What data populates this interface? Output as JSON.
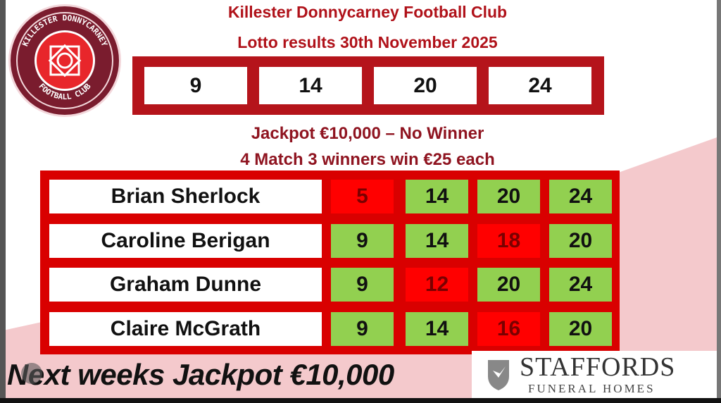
{
  "header": {
    "club": "Killester Donnycarney Football Club",
    "subtitle": "Lotto results 30th November 2025"
  },
  "logo": {
    "text_top": "KILLESTER DONNYCARNEY",
    "text_bottom": "FOOTBALL CLUB"
  },
  "draw_numbers": [
    "9",
    "14",
    "20",
    "24"
  ],
  "jackpot_line": "Jackpot €10,000 – No Winner",
  "winners_line": "4 Match 3 winners win €25 each",
  "winners": [
    {
      "name": "Brian Sherlock",
      "numbers": [
        {
          "n": "5",
          "match": false
        },
        {
          "n": "14",
          "match": true
        },
        {
          "n": "20",
          "match": true
        },
        {
          "n": "24",
          "match": true
        }
      ]
    },
    {
      "name": "Caroline Berigan",
      "numbers": [
        {
          "n": "9",
          "match": true
        },
        {
          "n": "14",
          "match": true
        },
        {
          "n": "18",
          "match": false
        },
        {
          "n": "20",
          "match": true
        }
      ]
    },
    {
      "name": "Graham Dunne",
      "numbers": [
        {
          "n": "9",
          "match": true
        },
        {
          "n": "12",
          "match": false
        },
        {
          "n": "20",
          "match": true
        },
        {
          "n": "24",
          "match": true
        }
      ]
    },
    {
      "name": "Claire McGrath",
      "numbers": [
        {
          "n": "9",
          "match": true
        },
        {
          "n": "14",
          "match": true
        },
        {
          "n": "16",
          "match": false
        },
        {
          "n": "20",
          "match": true
        }
      ]
    }
  ],
  "footer": {
    "next_jackpot": "Next weeks Jackpot €10,000"
  },
  "sponsor": {
    "name": "STAFFORDS",
    "tagline": "FUNERAL HOMES"
  },
  "colors": {
    "frame": "#d90000",
    "match": "#92d050",
    "no_match": "#ff0000",
    "title": "#b0121a"
  }
}
